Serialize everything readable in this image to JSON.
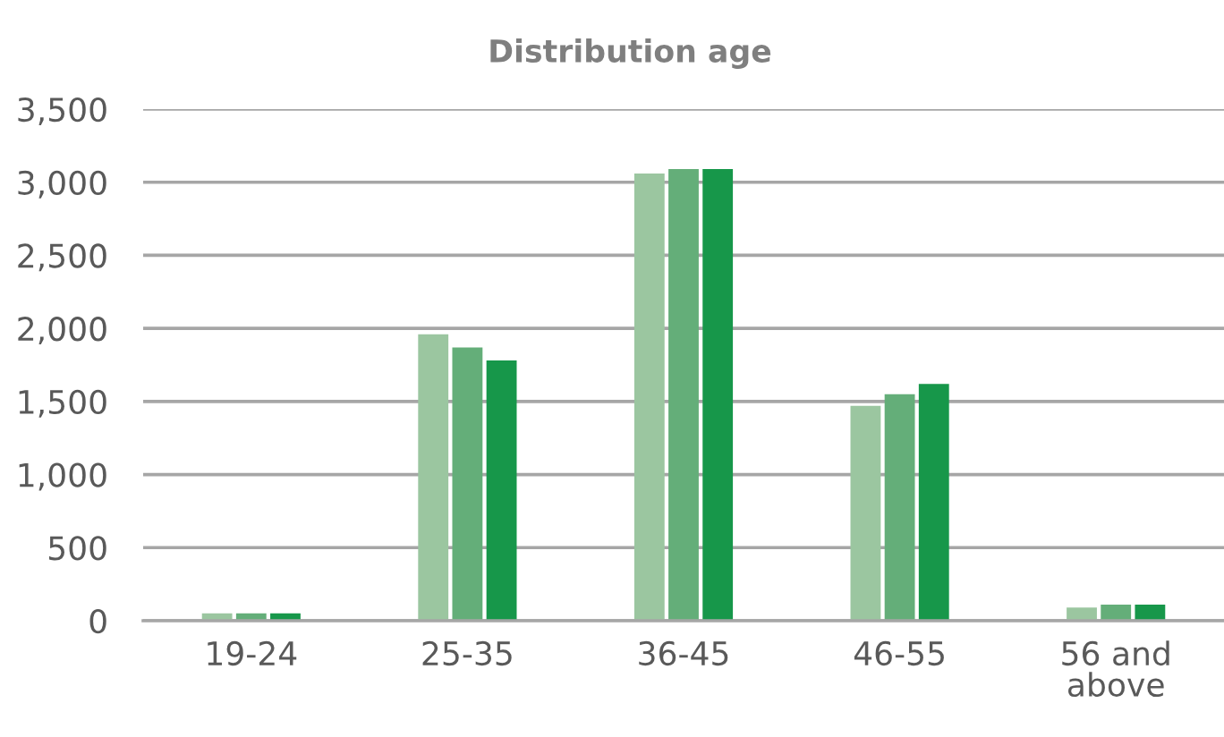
{
  "chart_data": {
    "type": "bar",
    "title": "Distribution age",
    "categories": [
      "19-24",
      "25-35",
      "36-45",
      "46-55",
      "56 and\nabove"
    ],
    "series": [
      {
        "color": "#9bc6a0",
        "values": [
          50,
          1960,
          3060,
          1470,
          90
        ]
      },
      {
        "color": "#64ae79",
        "values": [
          50,
          1870,
          3090,
          1550,
          110
        ]
      },
      {
        "color": "#17974a",
        "values": [
          50,
          1780,
          3090,
          1620,
          110
        ]
      }
    ],
    "ylim": [
      0,
      3500
    ],
    "yticks": [
      0,
      500,
      {
        "value": 1000,
        "label": "1,000"
      },
      {
        "value": 1500,
        "label": "1,500"
      },
      {
        "value": 2000,
        "label": "2,000"
      },
      {
        "value": 2500,
        "label": "2,500"
      },
      {
        "value": 3000,
        "label": "3,000"
      },
      {
        "value": 3500,
        "label": "3,500"
      }
    ],
    "grid": "y"
  }
}
